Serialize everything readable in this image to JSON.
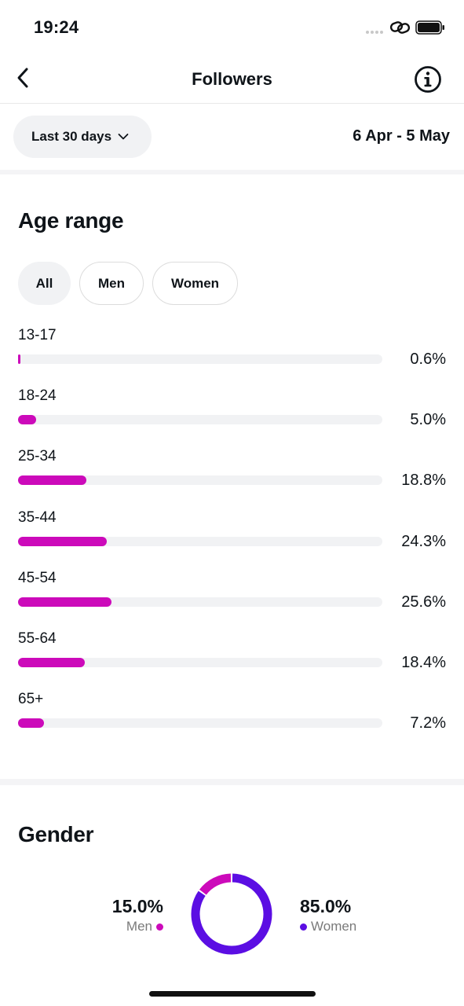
{
  "status_bar": {
    "time": "19:24"
  },
  "nav": {
    "title": "Followers"
  },
  "range": {
    "selector_label": "Last 30 days",
    "date_range": "6 Apr - 5 May"
  },
  "age": {
    "title": "Age range",
    "filters": [
      "All",
      "Men",
      "Women"
    ],
    "active_filter": "All",
    "accent_color": "#cc0aba",
    "rows": [
      {
        "label": "13-17",
        "value": "0.6%",
        "pct": 0.6
      },
      {
        "label": "18-24",
        "value": "5.0%",
        "pct": 5.0
      },
      {
        "label": "25-34",
        "value": "18.8%",
        "pct": 18.8
      },
      {
        "label": "35-44",
        "value": "24.3%",
        "pct": 24.3
      },
      {
        "label": "45-54",
        "value": "25.6%",
        "pct": 25.6
      },
      {
        "label": "55-64",
        "value": "18.4%",
        "pct": 18.4
      },
      {
        "label": "65+",
        "value": "7.2%",
        "pct": 7.2
      }
    ]
  },
  "gender": {
    "title": "Gender",
    "men": {
      "pct_text": "15.0%",
      "label": "Men",
      "pct": 15.0,
      "color": "#cc0aba"
    },
    "women": {
      "pct_text": "85.0%",
      "label": "Women",
      "pct": 85.0,
      "color": "#5b0ee3"
    }
  }
}
